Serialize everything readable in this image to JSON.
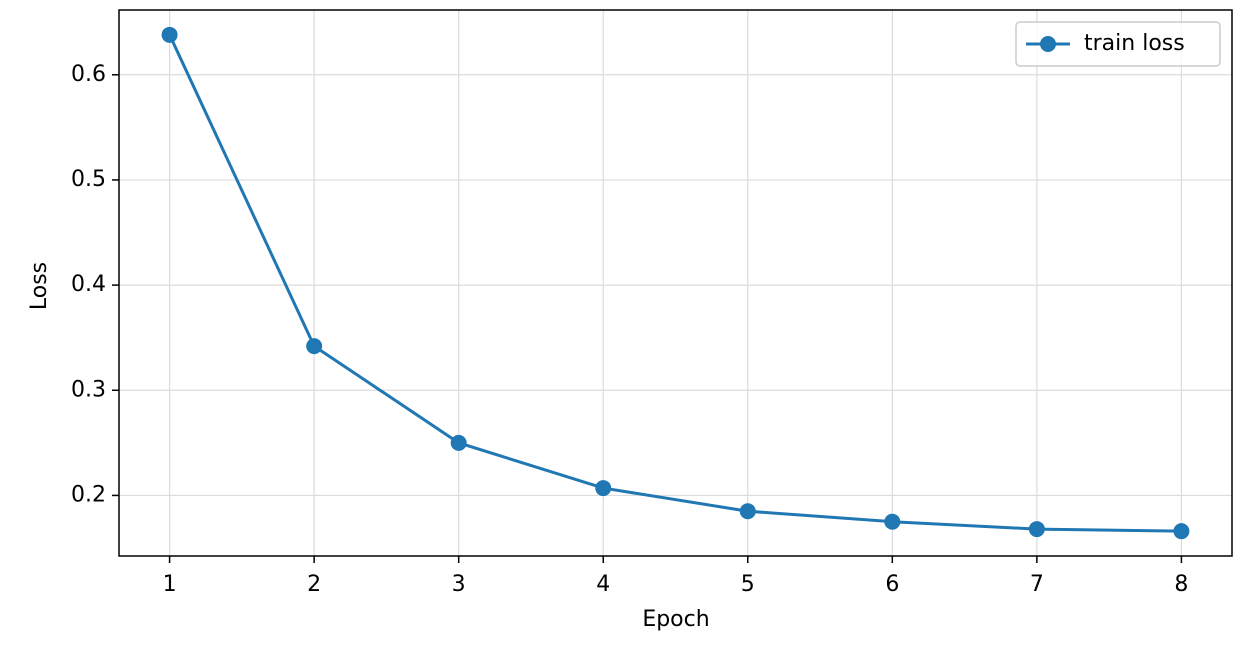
{
  "chart_data": {
    "type": "line",
    "xlabel": "Epoch",
    "ylabel": "Loss",
    "x": [
      1,
      2,
      3,
      4,
      5,
      6,
      7,
      8
    ],
    "series": [
      {
        "name": "train loss",
        "color": "#1f77b4",
        "values": [
          0.638,
          0.342,
          0.25,
          0.207,
          0.185,
          0.175,
          0.168,
          0.166
        ]
      }
    ],
    "xlim": [
      0.65,
      8.35
    ],
    "xticks": [
      1,
      2,
      3,
      4,
      5,
      6,
      7,
      8
    ],
    "ylim": [
      0.1424,
      0.6616
    ],
    "yticks": [
      0.2,
      0.3,
      0.4,
      0.5,
      0.6
    ],
    "grid": true,
    "legend": "upper right"
  }
}
